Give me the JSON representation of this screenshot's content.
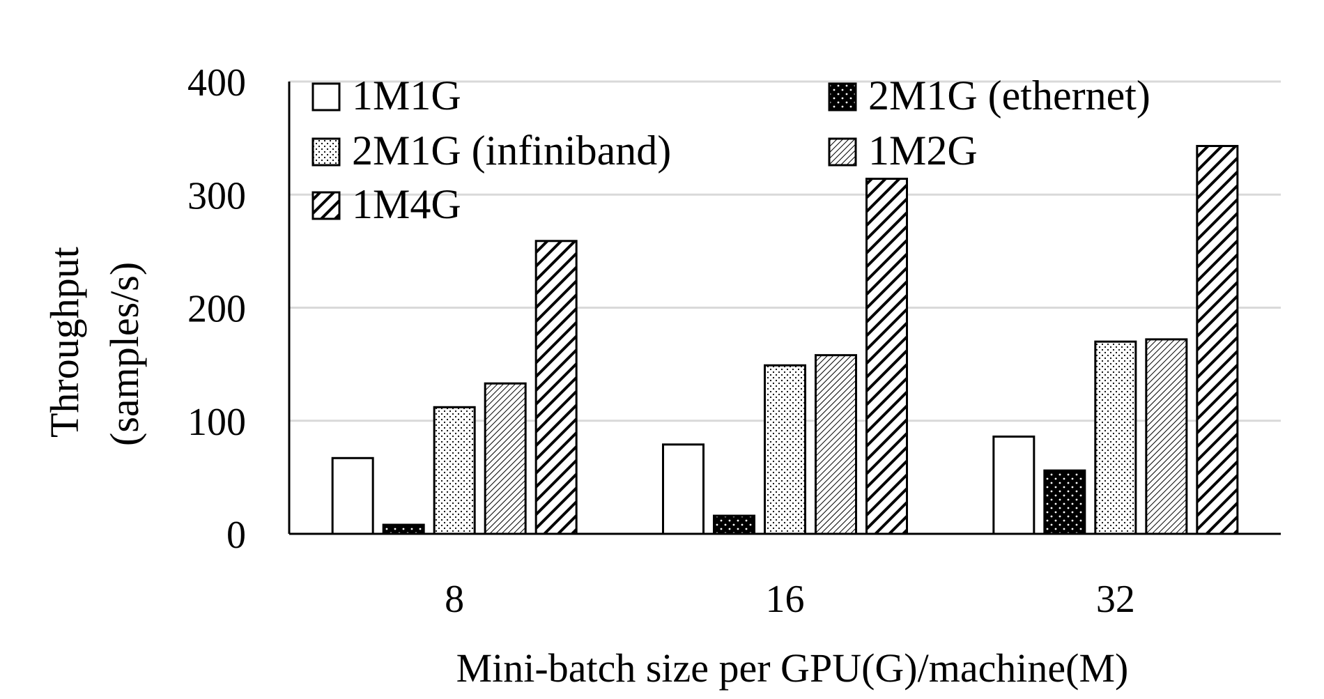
{
  "chart_data": {
    "type": "bar",
    "title": "",
    "xlabel": "Mini-batch size per GPU(G)/machine(M)",
    "ylabel_lines": [
      "Throughput",
      "(samples/s)"
    ],
    "categories": [
      "8",
      "16",
      "32"
    ],
    "ylim": [
      0,
      400
    ],
    "yticks": [
      0,
      100,
      200,
      300,
      400
    ],
    "grid": true,
    "legend_position": "top-left, inside plot, 2 columns",
    "series": [
      {
        "name": "1M1G",
        "pattern": "white",
        "values": [
          67,
          79,
          86
        ]
      },
      {
        "name": "2M1G (ethernet)",
        "pattern": "black-dotted",
        "values": [
          8,
          16,
          56
        ]
      },
      {
        "name": "2M1G (infiniband)",
        "pattern": "light-dotted",
        "values": [
          112,
          149,
          170
        ]
      },
      {
        "name": "1M2G",
        "pattern": "dense-diagonal",
        "values": [
          133,
          158,
          172
        ]
      },
      {
        "name": "1M4G",
        "pattern": "bold-diagonal",
        "values": [
          259,
          314,
          343
        ]
      }
    ],
    "colors": {
      "bar_stroke": "#000000",
      "grid": "#d9d9d9",
      "axis": "#000000"
    }
  }
}
